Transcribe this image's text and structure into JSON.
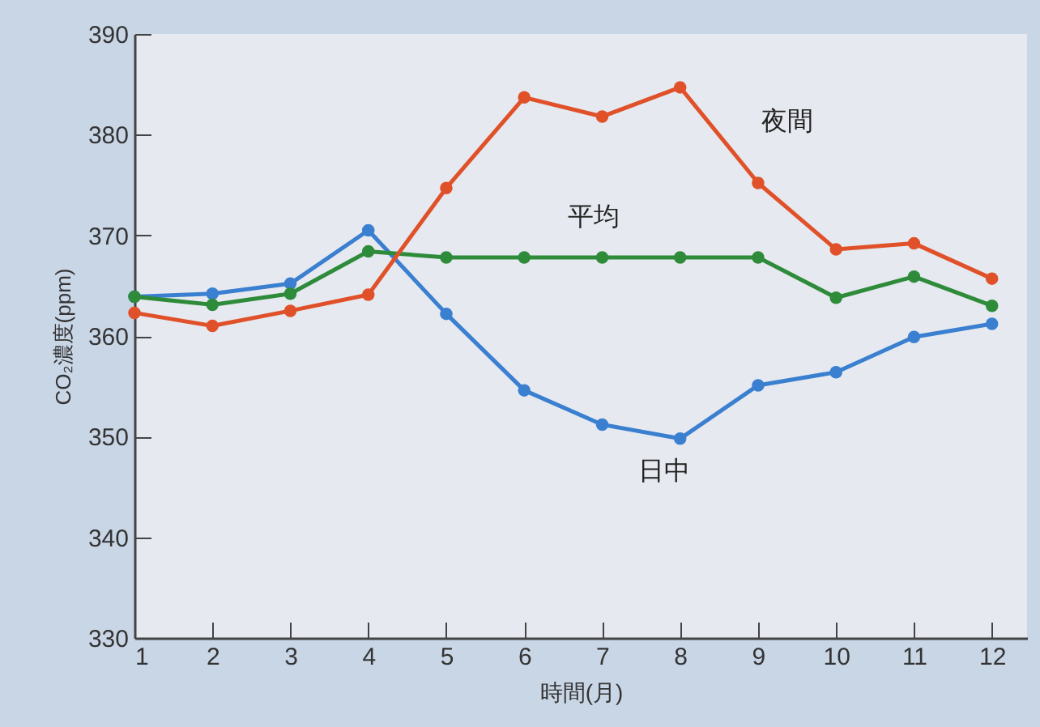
{
  "chart_data": {
    "type": "line",
    "xlabel": "時間(月)",
    "ylabel": "CO₂濃度(ppm)",
    "x": [
      1,
      2,
      3,
      4,
      5,
      6,
      7,
      8,
      9,
      10,
      11,
      12
    ],
    "xlim": [
      1,
      12.45
    ],
    "xticks": [
      1,
      2,
      3,
      4,
      5,
      6,
      7,
      8,
      9,
      10,
      11,
      12
    ],
    "ylim": [
      330,
      390
    ],
    "yticks": [
      330,
      340,
      350,
      360,
      370,
      380,
      390
    ],
    "marker": "circle",
    "legend": false,
    "series": [
      {
        "name": "夜間",
        "color": "#e0512a",
        "values": [
          362.3,
          361.0,
          362.5,
          364.1,
          374.7,
          383.7,
          381.8,
          384.7,
          375.2,
          368.6,
          369.2,
          365.7
        ]
      },
      {
        "name": "平均",
        "color": "#2e8b3a",
        "values": [
          363.9,
          363.1,
          364.2,
          368.4,
          367.8,
          367.8,
          367.8,
          367.8,
          367.8,
          363.8,
          365.9,
          363.0
        ]
      },
      {
        "name": "日中",
        "color": "#3a7fd0",
        "values": [
          363.9,
          364.2,
          365.2,
          370.5,
          362.2,
          354.6,
          351.2,
          349.8,
          355.1,
          356.4,
          359.9,
          361.2
        ]
      }
    ]
  }
}
